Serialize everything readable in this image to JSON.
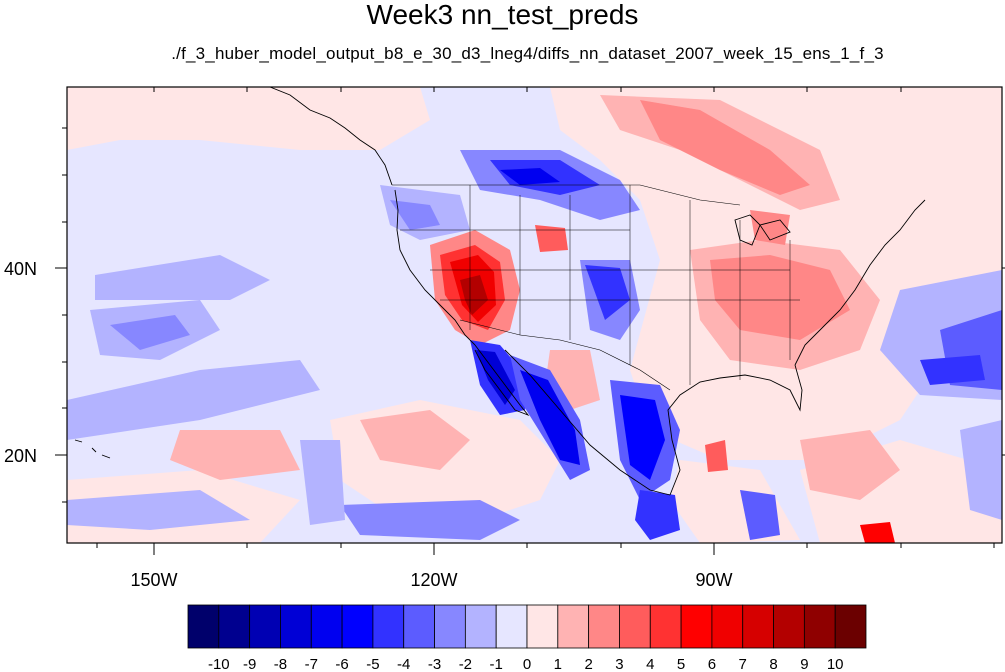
{
  "title": "Week3 nn_test_preds",
  "subtitle": "./f_3_huber_model_output_b8_e_30_d3_lneg4/diffs_nn_dataset_2007_week_15_ens_1_f_3",
  "map": {
    "lat_ticks": [
      "40N",
      "20N"
    ],
    "lon_ticks": [
      "150W",
      "120W",
      "90W"
    ]
  },
  "colorbar": {
    "labels": [
      "-10",
      "-9",
      "-8",
      "-7",
      "-6",
      "-5",
      "-4",
      "-3",
      "-2",
      "-1",
      "0",
      "1",
      "2",
      "3",
      "4",
      "5",
      "6",
      "7",
      "8",
      "9",
      "10"
    ],
    "colors": [
      "#00006b",
      "#00008f",
      "#0000b3",
      "#0000d6",
      "#0000f0",
      "#0000ff",
      "#3232ff",
      "#5c5cff",
      "#8787ff",
      "#b3b3ff",
      "#e6e6ff",
      "#ffe6e6",
      "#ffb3b3",
      "#ff8787",
      "#ff5c5c",
      "#ff3232",
      "#ff0000",
      "#f00000",
      "#d60000",
      "#b30000",
      "#8f0000",
      "#6b0000"
    ]
  }
}
